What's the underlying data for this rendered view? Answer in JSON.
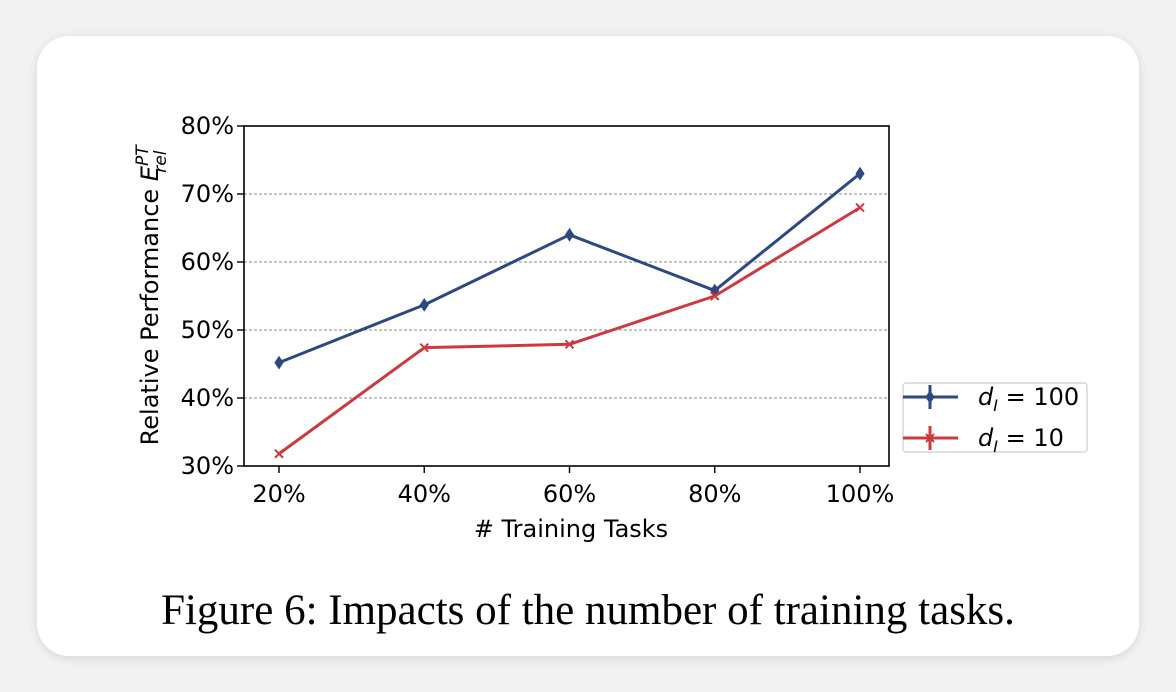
{
  "chart_data": {
    "type": "line",
    "categories": [
      "20%",
      "40%",
      "60%",
      "80%",
      "100%"
    ],
    "xlabel": "# Training Tasks",
    "ylabel_prefix": "Relative Performance ",
    "ylabel_symbol": "E",
    "ylabel_sup": "PT",
    "ylabel_sub": "rel",
    "ylim": [
      30,
      80
    ],
    "yticks": [
      30,
      40,
      50,
      60,
      70,
      80
    ],
    "ytick_labels": [
      "30%",
      "40%",
      "50%",
      "60%",
      "70%",
      "80%"
    ],
    "grid": "horizontal dashed",
    "legend_position": "outside right",
    "series": [
      {
        "name_var": "d",
        "name_sub": "I",
        "name_rest": " = 100",
        "color": "#2e4882",
        "marker": "diamond",
        "values": [
          45.2,
          53.7,
          64.0,
          55.8,
          73.0
        ]
      },
      {
        "name_var": "d",
        "name_sub": "I",
        "name_rest": " = 10",
        "color": "#cc3a3f",
        "marker": "x",
        "values": [
          31.8,
          47.4,
          47.9,
          55.0,
          68.0
        ]
      }
    ]
  },
  "caption": "Figure 6: Impacts of the number of training tasks."
}
